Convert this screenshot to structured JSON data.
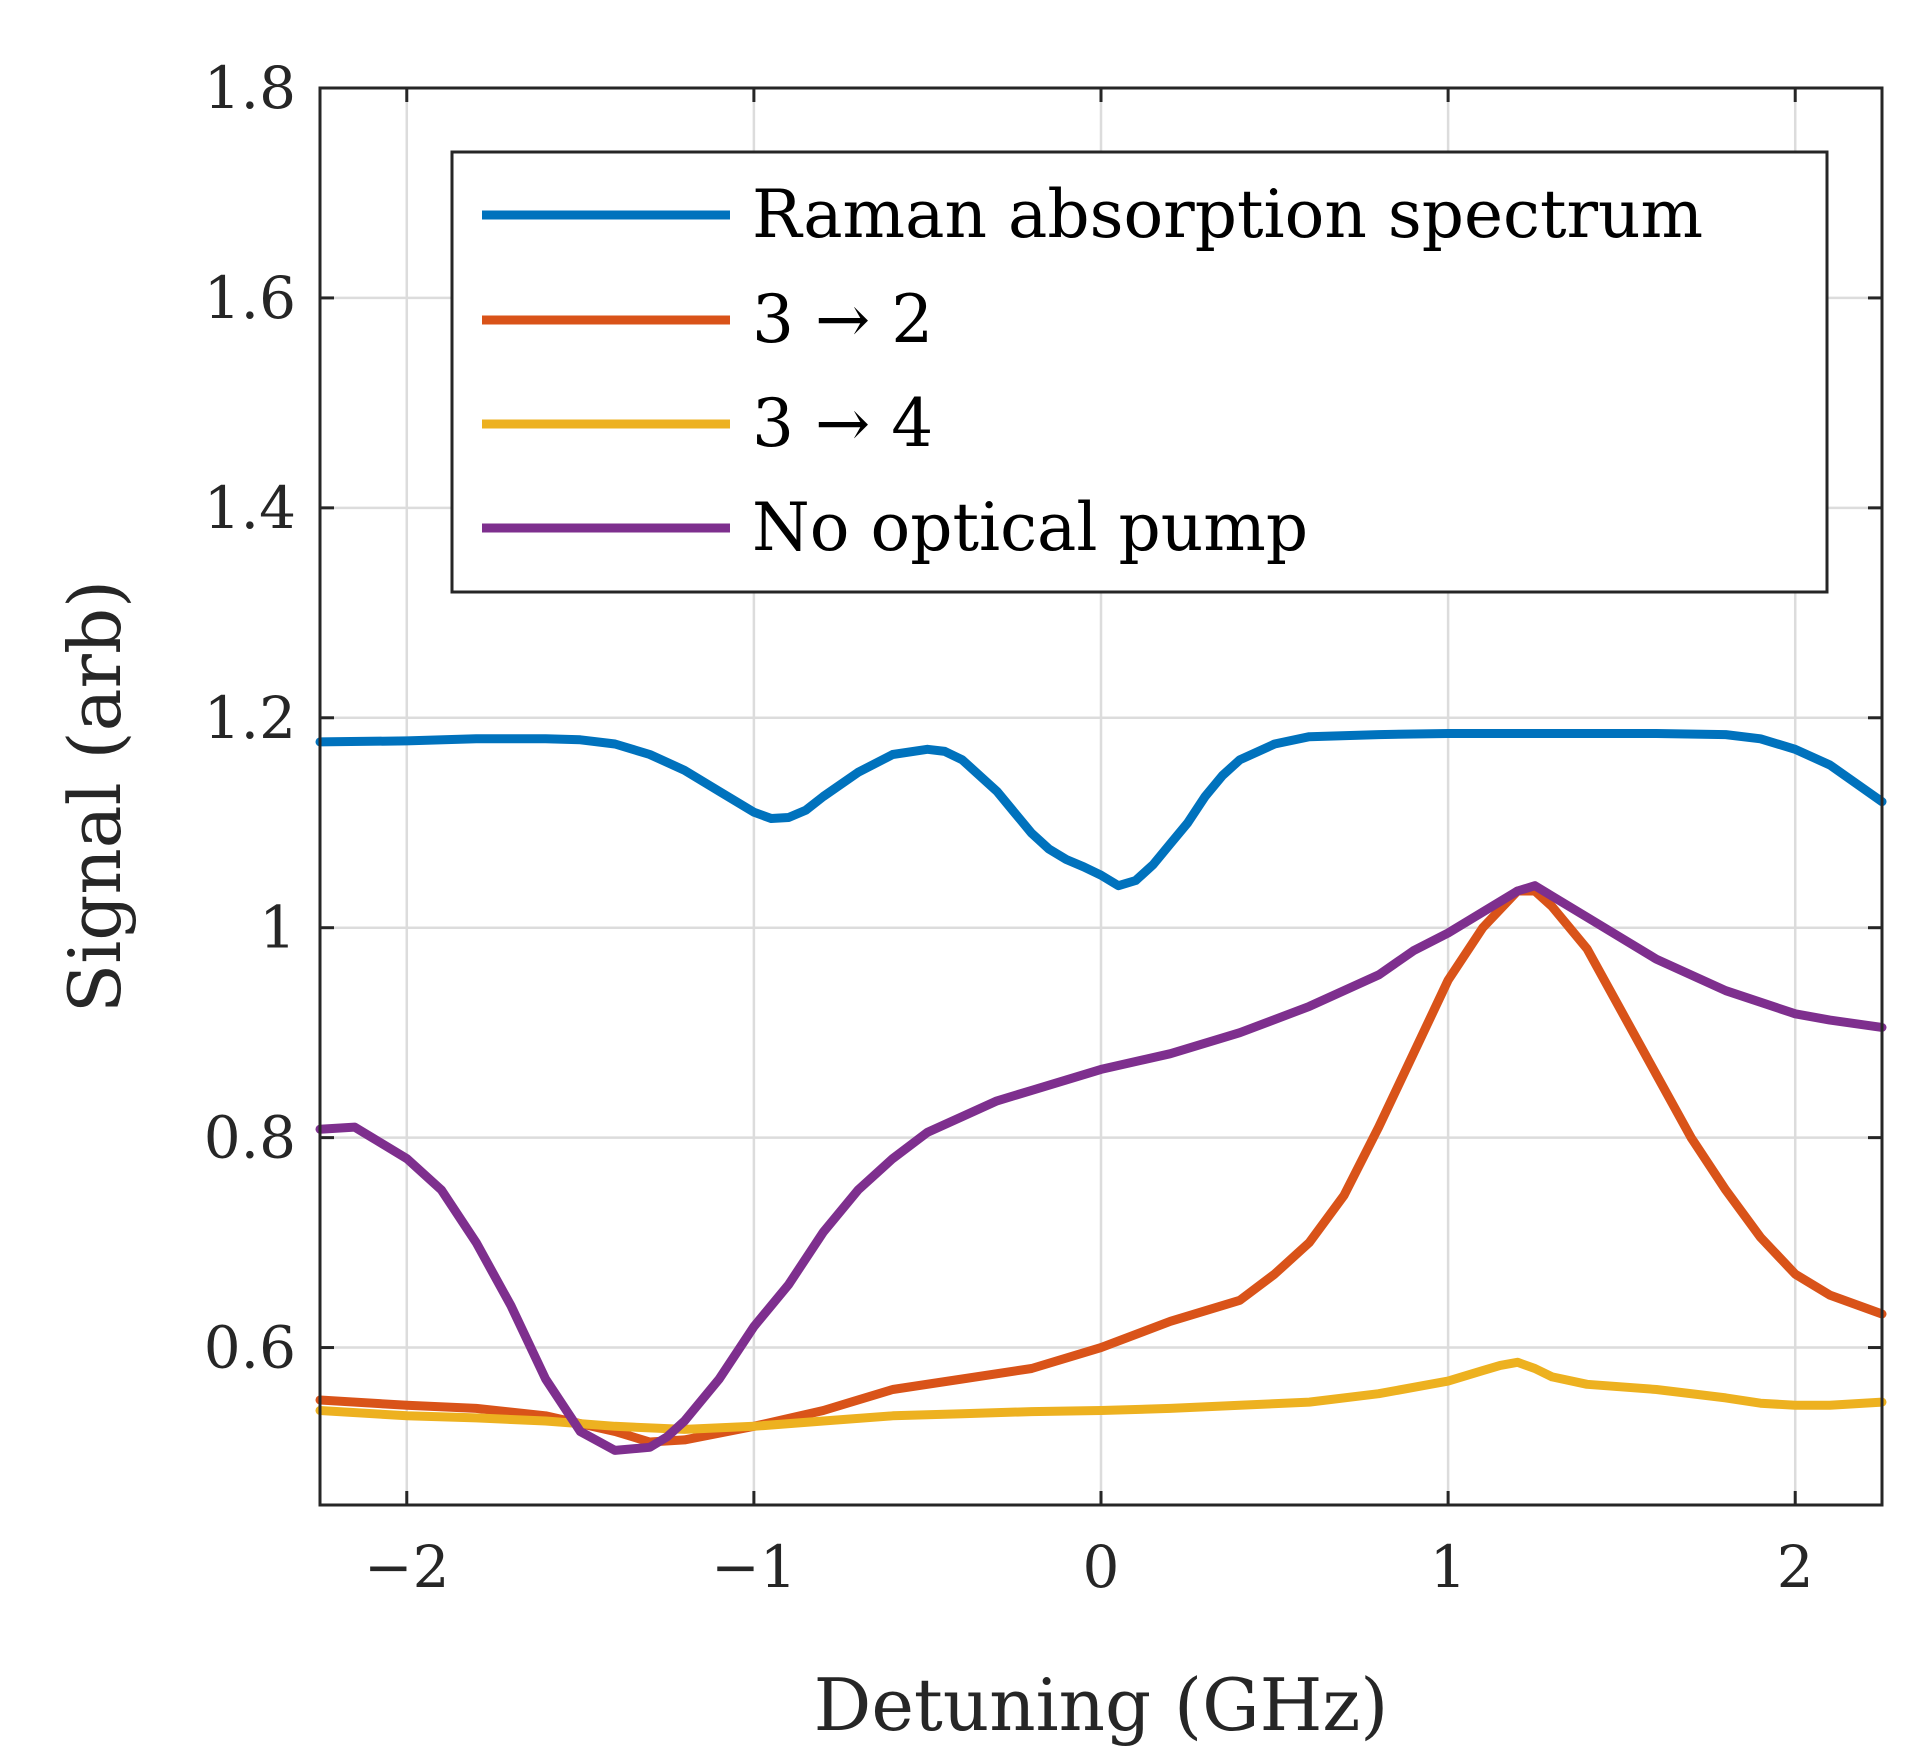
{
  "chart_data": {
    "type": "line",
    "title": "",
    "xlabel": "Detuning (GHz)",
    "ylabel": "Signal (arb)",
    "xlim": [
      -2.25,
      2.25
    ],
    "ylim": [
      0.45,
      1.8
    ],
    "xticks": [
      -2,
      -1,
      0,
      1,
      2
    ],
    "xtick_labels": [
      "−2",
      "−1",
      "0",
      "1",
      "2"
    ],
    "yticks": [
      0.6,
      0.8,
      1.0,
      1.2,
      1.4,
      1.6,
      1.8
    ],
    "ytick_labels": [
      "0.6",
      "0.8",
      "1",
      "1.2",
      "1.4",
      "1.6",
      "1.8"
    ],
    "grid": true,
    "legend_position": "top-right",
    "series": [
      {
        "name": "Raman absorption spectrum",
        "color": "#0072BD",
        "x": [
          -2.25,
          -2.0,
          -1.8,
          -1.6,
          -1.5,
          -1.4,
          -1.3,
          -1.2,
          -1.1,
          -1.0,
          -0.95,
          -0.9,
          -0.85,
          -0.8,
          -0.7,
          -0.6,
          -0.5,
          -0.45,
          -0.4,
          -0.3,
          -0.25,
          -0.2,
          -0.15,
          -0.1,
          -0.05,
          0.0,
          0.05,
          0.1,
          0.15,
          0.2,
          0.25,
          0.3,
          0.35,
          0.4,
          0.5,
          0.6,
          0.8,
          1.0,
          1.2,
          1.4,
          1.6,
          1.8,
          1.9,
          2.0,
          2.1,
          2.25
        ],
        "y": [
          1.177,
          1.178,
          1.18,
          1.18,
          1.179,
          1.175,
          1.165,
          1.15,
          1.13,
          1.11,
          1.104,
          1.105,
          1.112,
          1.125,
          1.148,
          1.165,
          1.17,
          1.168,
          1.16,
          1.13,
          1.11,
          1.09,
          1.075,
          1.065,
          1.058,
          1.05,
          1.04,
          1.045,
          1.06,
          1.08,
          1.1,
          1.125,
          1.145,
          1.16,
          1.175,
          1.182,
          1.184,
          1.185,
          1.185,
          1.185,
          1.185,
          1.184,
          1.18,
          1.17,
          1.155,
          1.12
        ]
      },
      {
        "name": "3 → 2",
        "color": "#D95319",
        "x": [
          -2.25,
          -2.0,
          -1.8,
          -1.6,
          -1.4,
          -1.3,
          -1.2,
          -1.0,
          -0.8,
          -0.6,
          -0.4,
          -0.2,
          0.0,
          0.2,
          0.4,
          0.5,
          0.6,
          0.7,
          0.8,
          0.9,
          1.0,
          1.1,
          1.2,
          1.25,
          1.3,
          1.4,
          1.5,
          1.6,
          1.7,
          1.8,
          1.9,
          2.0,
          2.1,
          2.25
        ],
        "y": [
          0.55,
          0.545,
          0.542,
          0.535,
          0.52,
          0.51,
          0.512,
          0.525,
          0.54,
          0.56,
          0.57,
          0.58,
          0.6,
          0.625,
          0.645,
          0.67,
          0.7,
          0.745,
          0.81,
          0.88,
          0.95,
          1.0,
          1.035,
          1.035,
          1.02,
          0.98,
          0.92,
          0.86,
          0.8,
          0.75,
          0.705,
          0.67,
          0.65,
          0.632
        ]
      },
      {
        "name": "3 → 4",
        "color": "#EDB120",
        "x": [
          -2.25,
          -2.0,
          -1.8,
          -1.6,
          -1.4,
          -1.2,
          -1.0,
          -0.8,
          -0.6,
          -0.4,
          -0.2,
          0.0,
          0.2,
          0.4,
          0.6,
          0.8,
          1.0,
          1.1,
          1.15,
          1.2,
          1.25,
          1.3,
          1.4,
          1.6,
          1.8,
          1.9,
          2.0,
          2.1,
          2.25
        ],
        "y": [
          0.54,
          0.535,
          0.533,
          0.53,
          0.525,
          0.522,
          0.525,
          0.53,
          0.535,
          0.537,
          0.539,
          0.54,
          0.542,
          0.545,
          0.548,
          0.556,
          0.568,
          0.578,
          0.583,
          0.586,
          0.58,
          0.572,
          0.565,
          0.56,
          0.552,
          0.547,
          0.545,
          0.545,
          0.548
        ]
      },
      {
        "name": "No optical pump",
        "color": "#7E2F8E",
        "x": [
          -2.25,
          -2.15,
          -2.1,
          -2.0,
          -1.9,
          -1.8,
          -1.7,
          -1.6,
          -1.5,
          -1.4,
          -1.3,
          -1.25,
          -1.2,
          -1.1,
          -1.0,
          -0.9,
          -0.8,
          -0.7,
          -0.6,
          -0.5,
          -0.4,
          -0.3,
          -0.2,
          -0.1,
          0.0,
          0.2,
          0.4,
          0.6,
          0.8,
          0.9,
          1.0,
          1.1,
          1.2,
          1.25,
          1.3,
          1.4,
          1.5,
          1.6,
          1.8,
          2.0,
          2.1,
          2.25
        ],
        "y": [
          0.808,
          0.81,
          0.8,
          0.78,
          0.75,
          0.7,
          0.64,
          0.57,
          0.52,
          0.502,
          0.505,
          0.515,
          0.53,
          0.57,
          0.62,
          0.66,
          0.71,
          0.75,
          0.78,
          0.805,
          0.82,
          0.835,
          0.845,
          0.855,
          0.865,
          0.88,
          0.9,
          0.925,
          0.955,
          0.978,
          0.995,
          1.015,
          1.035,
          1.04,
          1.03,
          1.01,
          0.99,
          0.97,
          0.94,
          0.918,
          0.912,
          0.905
        ]
      }
    ]
  }
}
